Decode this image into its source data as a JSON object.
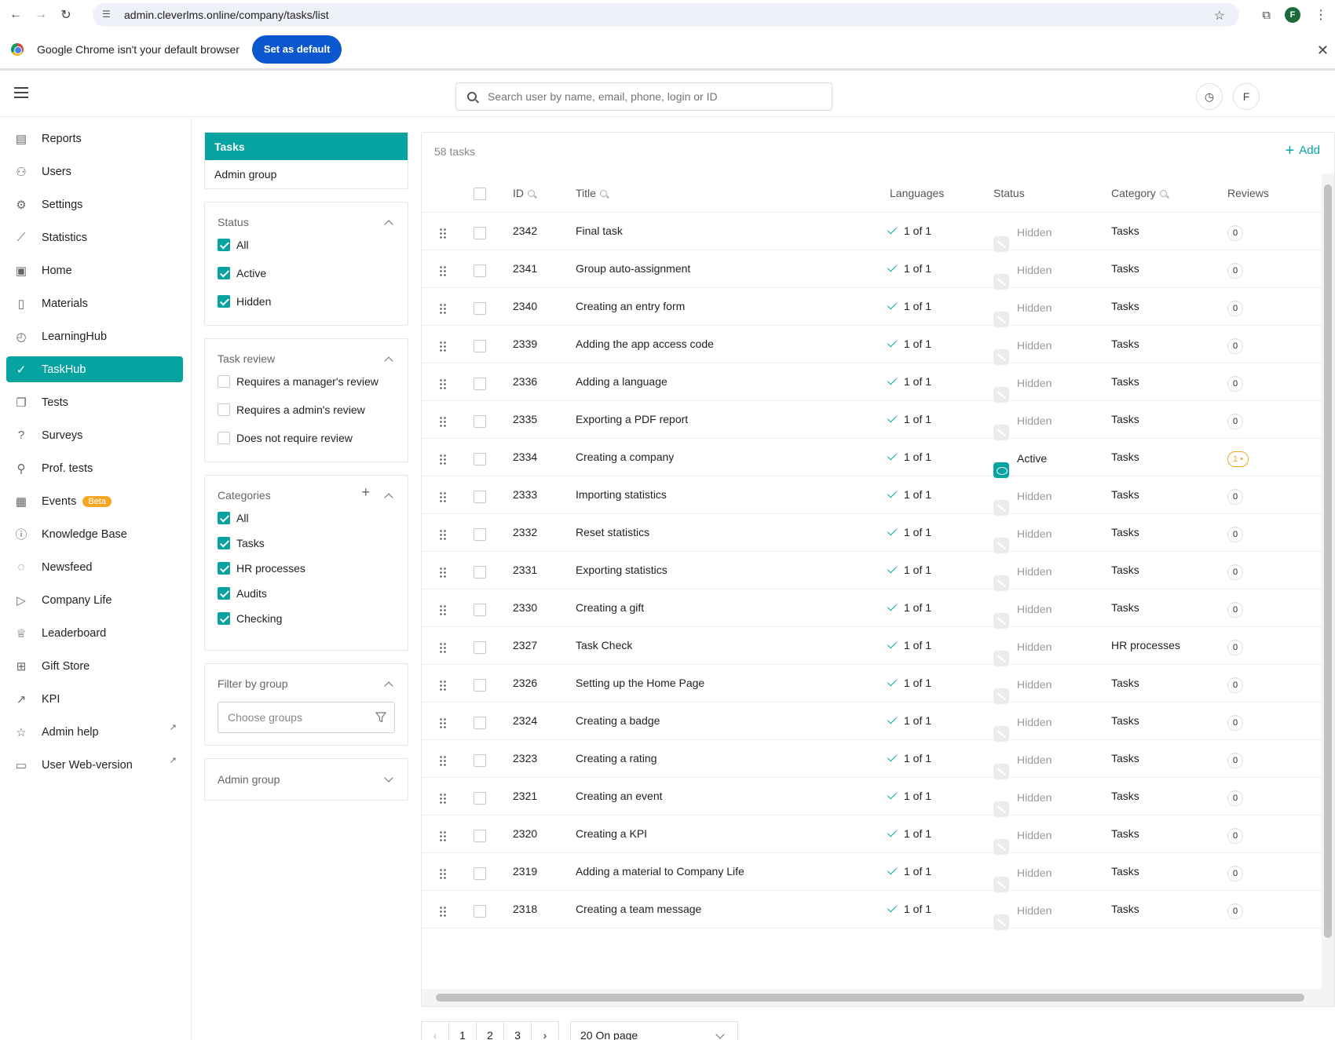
{
  "browser": {
    "url": "admin.cleverlms.online/company/tasks/list",
    "profile_initial": "F",
    "infobar_text": "Google Chrome isn't your default browser",
    "set_default_label": "Set as default"
  },
  "header": {
    "search_placeholder": "Search user by name, email, phone, login or ID",
    "avatar_initial": "F"
  },
  "sidebar": {
    "items": [
      {
        "label": "Reports",
        "icon": "reports-icon"
      },
      {
        "label": "Users",
        "icon": "users-icon"
      },
      {
        "label": "Settings",
        "icon": "gear-icon"
      },
      {
        "label": "Statistics",
        "icon": "chart-line-icon"
      },
      {
        "label": "Home",
        "icon": "home-icon"
      },
      {
        "label": "Materials",
        "icon": "document-icon"
      },
      {
        "label": "LearningHub",
        "icon": "compass-icon"
      },
      {
        "label": "TaskHub",
        "icon": "check-circle-icon",
        "active": true
      },
      {
        "label": "Tests",
        "icon": "tests-icon"
      },
      {
        "label": "Surveys",
        "icon": "question-bubble-icon"
      },
      {
        "label": "Prof. tests",
        "icon": "user-check-icon"
      },
      {
        "label": "Events",
        "icon": "calendar-icon",
        "badge": "Beta"
      },
      {
        "label": "Knowledge Base",
        "icon": "info-icon"
      },
      {
        "label": "Newsfeed",
        "icon": "chat-icon"
      },
      {
        "label": "Company Life",
        "icon": "play-icon"
      },
      {
        "label": "Leaderboard",
        "icon": "trophy-icon"
      },
      {
        "label": "Gift Store",
        "icon": "gift-icon"
      },
      {
        "label": "KPI",
        "icon": "trend-icon"
      },
      {
        "label": "Admin help",
        "icon": "star-icon",
        "external": true
      },
      {
        "label": "User Web-version",
        "icon": "monitor-icon",
        "external": true
      }
    ]
  },
  "filters": {
    "tabs": [
      "Tasks",
      "Admin group"
    ],
    "status": {
      "title": "Status",
      "options": [
        {
          "label": "All",
          "checked": true
        },
        {
          "label": "Active",
          "checked": true
        },
        {
          "label": "Hidden",
          "checked": true
        }
      ]
    },
    "task_review": {
      "title": "Task review",
      "options": [
        {
          "label": "Requires a manager's review",
          "checked": false
        },
        {
          "label": "Requires a admin's review",
          "checked": false
        },
        {
          "label": "Does not require review",
          "checked": false
        }
      ]
    },
    "categories": {
      "title": "Categories",
      "options": [
        {
          "label": "All",
          "checked": true
        },
        {
          "label": "Tasks",
          "checked": true
        },
        {
          "label": "HR processes",
          "checked": true
        },
        {
          "label": "Audits",
          "checked": true
        },
        {
          "label": "Checking",
          "checked": true
        }
      ]
    },
    "group_filter": {
      "title": "Filter by group",
      "placeholder": "Choose groups"
    },
    "admin_group": {
      "title": "Admin group"
    }
  },
  "table": {
    "count_label": "58 tasks",
    "add_label": "Add",
    "columns": {
      "id": "ID",
      "title": "Title",
      "languages": "Languages",
      "status": "Status",
      "category": "Category",
      "reviews": "Reviews"
    },
    "rows": [
      {
        "id": "2342",
        "title": "Final task",
        "languages": "1 of 1",
        "status": "Hidden",
        "category": "Tasks",
        "reviews": "0"
      },
      {
        "id": "2341",
        "title": "Group auto-assignment",
        "languages": "1 of 1",
        "status": "Hidden",
        "category": "Tasks",
        "reviews": "0"
      },
      {
        "id": "2340",
        "title": "Creating an entry form",
        "languages": "1 of 1",
        "status": "Hidden",
        "category": "Tasks",
        "reviews": "0"
      },
      {
        "id": "2339",
        "title": "Adding the app access code",
        "languages": "1 of 1",
        "status": "Hidden",
        "category": "Tasks",
        "reviews": "0"
      },
      {
        "id": "2336",
        "title": "Adding a language",
        "languages": "1 of 1",
        "status": "Hidden",
        "category": "Tasks",
        "reviews": "0"
      },
      {
        "id": "2335",
        "title": "Exporting a PDF report",
        "languages": "1 of 1",
        "status": "Hidden",
        "category": "Tasks",
        "reviews": "0"
      },
      {
        "id": "2334",
        "title": "Creating a company",
        "languages": "1 of 1",
        "status": "Active",
        "category": "Tasks",
        "reviews": "1 •"
      },
      {
        "id": "2333",
        "title": "Importing statistics",
        "languages": "1 of 1",
        "status": "Hidden",
        "category": "Tasks",
        "reviews": "0"
      },
      {
        "id": "2332",
        "title": "Reset statistics",
        "languages": "1 of 1",
        "status": "Hidden",
        "category": "Tasks",
        "reviews": "0"
      },
      {
        "id": "2331",
        "title": "Exporting statistics",
        "languages": "1 of 1",
        "status": "Hidden",
        "category": "Tasks",
        "reviews": "0"
      },
      {
        "id": "2330",
        "title": "Creating a gift",
        "languages": "1 of 1",
        "status": "Hidden",
        "category": "Tasks",
        "reviews": "0"
      },
      {
        "id": "2327",
        "title": "Task Check",
        "languages": "1 of 1",
        "status": "Hidden",
        "category": "HR processes",
        "reviews": "0"
      },
      {
        "id": "2326",
        "title": "Setting up the Home Page",
        "languages": "1 of 1",
        "status": "Hidden",
        "category": "Tasks",
        "reviews": "0"
      },
      {
        "id": "2324",
        "title": "Creating a badge",
        "languages": "1 of 1",
        "status": "Hidden",
        "category": "Tasks",
        "reviews": "0"
      },
      {
        "id": "2323",
        "title": "Creating a rating",
        "languages": "1 of 1",
        "status": "Hidden",
        "category": "Tasks",
        "reviews": "0"
      },
      {
        "id": "2321",
        "title": "Creating an event",
        "languages": "1 of 1",
        "status": "Hidden",
        "category": "Tasks",
        "reviews": "0"
      },
      {
        "id": "2320",
        "title": "Creating a KPI",
        "languages": "1 of 1",
        "status": "Hidden",
        "category": "Tasks",
        "reviews": "0"
      },
      {
        "id": "2319",
        "title": "Adding a material to Company Life",
        "languages": "1 of 1",
        "status": "Hidden",
        "category": "Tasks",
        "reviews": "0"
      },
      {
        "id": "2318",
        "title": "Creating a team message",
        "languages": "1 of 1",
        "status": "Hidden",
        "category": "Tasks",
        "reviews": "0"
      }
    ]
  },
  "pagination": {
    "pages": [
      "1",
      "2",
      "3"
    ],
    "per_page": "20 On page"
  },
  "colors": {
    "accent": "#06a3a1",
    "beta": "#f5a623",
    "chrome_blue": "#0b57d0"
  }
}
